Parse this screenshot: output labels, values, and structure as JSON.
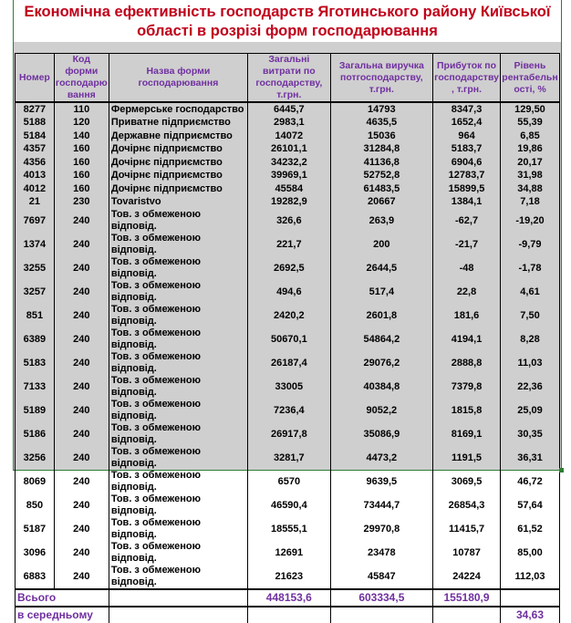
{
  "title": "Економічна ефективність господарств Яготинського району Київської області в розрізі форм господарювання",
  "headers": [
    "Номер",
    "Код форми господарю вання",
    "Назва форми господарювання",
    "Загальні витрати по господарству, т.грн.",
    "Загальна виручка потгосподарству, т.грн.",
    "Прибуток по господарству , т.грн.",
    "Рівень рентабельн ості, %"
  ],
  "rows": [
    [
      "8277",
      "110",
      "Фермерське господарство",
      "6445,7",
      "14793",
      "8347,3",
      "129,50"
    ],
    [
      "5188",
      "120",
      "Приватне підприємство",
      "2983,1",
      "4635,5",
      "1652,4",
      "55,39"
    ],
    [
      "5184",
      "140",
      "Державне підприємство",
      "14072",
      "15036",
      "964",
      "6,85"
    ],
    [
      "4357",
      "160",
      "Дочірнє підприємство",
      "26101,1",
      "31284,8",
      "5183,7",
      "19,86"
    ],
    [
      "4356",
      "160",
      "Дочірнє підприємство",
      "34232,2",
      "41136,8",
      "6904,6",
      "20,17"
    ],
    [
      "4013",
      "160",
      "Дочірнє підприємство",
      "39969,1",
      "52752,8",
      "12783,7",
      "31,98"
    ],
    [
      "4012",
      "160",
      "Дочірнє підприємство",
      "45584",
      "61483,5",
      "15899,5",
      "34,88"
    ],
    [
      "21",
      "230",
      "Tovaristvo",
      "19282,9",
      "20667",
      "1384,1",
      "7,18"
    ],
    [
      "7697",
      "240",
      "Тов. з обмеженою відповід.",
      "326,6",
      "263,9",
      "-62,7",
      "-19,20"
    ],
    [
      "1374",
      "240",
      "Тов. з обмеженою відповід.",
      "221,7",
      "200",
      "-21,7",
      "-9,79"
    ],
    [
      "3255",
      "240",
      "Тов. з обмеженою відповід.",
      "2692,5",
      "2644,5",
      "-48",
      "-1,78"
    ],
    [
      "3257",
      "240",
      "Тов. з обмеженою відповід.",
      "494,6",
      "517,4",
      "22,8",
      "4,61"
    ],
    [
      "851",
      "240",
      "Тов. з обмеженою відповід.",
      "2420,2",
      "2601,8",
      "181,6",
      "7,50"
    ],
    [
      "6389",
      "240",
      "Тов. з обмеженою відповід.",
      "50670,1",
      "54864,2",
      "4194,1",
      "8,28"
    ],
    [
      "5183",
      "240",
      "Тов. з обмеженою відповід.",
      "26187,4",
      "29076,2",
      "2888,8",
      "11,03"
    ],
    [
      "7133",
      "240",
      "Тов. з обмеженою відповід.",
      "33005",
      "40384,8",
      "7379,8",
      "22,36"
    ],
    [
      "5189",
      "240",
      "Тов. з обмеженою відповід.",
      "7236,4",
      "9052,2",
      "1815,8",
      "25,09"
    ],
    [
      "5186",
      "240",
      "Тов. з обмеженою відповід.",
      "26917,8",
      "35086,9",
      "8169,1",
      "30,35"
    ],
    [
      "3256",
      "240",
      "Тов. з обмеженою відповід.",
      "3281,7",
      "4473,2",
      "1191,5",
      "36,31"
    ],
    [
      "8069",
      "240",
      "Тов. з обмеженою відповід.",
      "6570",
      "9639,5",
      "3069,5",
      "46,72"
    ],
    [
      "850",
      "240",
      "Тов. з обмеженою відповід.",
      "46590,4",
      "73444,7",
      "26854,3",
      "57,64"
    ],
    [
      "5187",
      "240",
      "Тов. з обмеженою відповід.",
      "18555,1",
      "29970,8",
      "11415,7",
      "61,52"
    ],
    [
      "3096",
      "240",
      "Тов. з обмеженою відповід.",
      "12691",
      "23478",
      "10787",
      "85,00"
    ],
    [
      "6883",
      "240",
      "Тов. з обмеженою відповід.",
      "21623",
      "45847",
      "24224",
      "112,03"
    ]
  ],
  "total": {
    "label": "Всього",
    "costs": "448153,6",
    "revenue": "603334,5",
    "profit": "155180,9"
  },
  "average": {
    "label": "в середньому",
    "profitability": "34,63"
  }
}
